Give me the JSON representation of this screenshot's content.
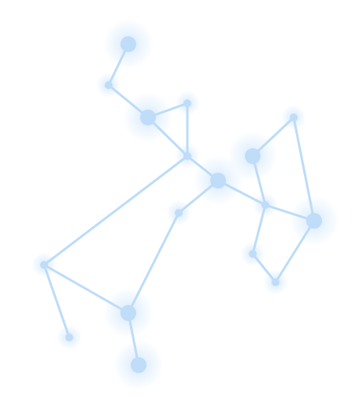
{
  "colors": {
    "background": "#ffffff",
    "line": "#bcdcf8",
    "node": "#bfdcf9",
    "glow": "#cfe6fc"
  },
  "diagram": {
    "type": "constellation-graph",
    "nodes": [
      {
        "id": "n1",
        "size": "large"
      },
      {
        "id": "n2",
        "size": "small"
      },
      {
        "id": "n3",
        "size": "large"
      },
      {
        "id": "n4",
        "size": "small"
      },
      {
        "id": "n5",
        "size": "small"
      },
      {
        "id": "n6",
        "size": "small"
      },
      {
        "id": "n7",
        "size": "large"
      },
      {
        "id": "n8",
        "size": "small"
      },
      {
        "id": "n9",
        "size": "large"
      },
      {
        "id": "n10",
        "size": "small"
      },
      {
        "id": "n11",
        "size": "large"
      },
      {
        "id": "n12",
        "size": "small"
      },
      {
        "id": "n13",
        "size": "large"
      },
      {
        "id": "n14",
        "size": "small"
      },
      {
        "id": "n15",
        "size": "small"
      },
      {
        "id": "n16",
        "size": "small"
      },
      {
        "id": "n17",
        "size": "large"
      },
      {
        "id": "n18",
        "size": "small"
      }
    ],
    "edges": [
      [
        "n1",
        "n2"
      ],
      [
        "n2",
        "n3"
      ],
      [
        "n3",
        "n4"
      ],
      [
        "n4",
        "n5"
      ],
      [
        "n3",
        "n5"
      ],
      [
        "n5",
        "n6"
      ],
      [
        "n6",
        "n7"
      ],
      [
        "n6",
        "n8"
      ],
      [
        "n8",
        "n9"
      ],
      [
        "n9",
        "n10"
      ],
      [
        "n10",
        "n8"
      ],
      [
        "n8",
        "n11"
      ],
      [
        "n11",
        "n12"
      ],
      [
        "n12",
        "n8"
      ],
      [
        "n5",
        "n13"
      ],
      [
        "n13",
        "n14"
      ],
      [
        "n14",
        "n7"
      ],
      [
        "n13",
        "n15"
      ],
      [
        "n14",
        "n16"
      ]
    ]
  }
}
